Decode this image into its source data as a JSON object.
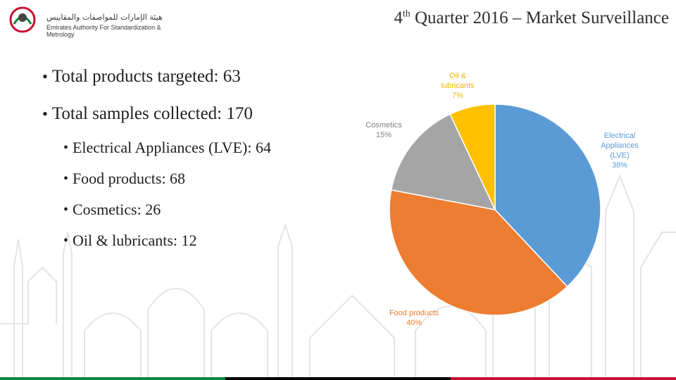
{
  "logo": {
    "arabic_text": "هيئة الإمارات للمواصفات والمقاييس",
    "english_text": "Emirates Authority For Standardization & Metrology"
  },
  "title": {
    "ordinal_number": "4",
    "ordinal_suffix": "th",
    "text": " Quarter 2016 – Market Surveillance"
  },
  "bullets": {
    "main": [
      {
        "text": "Total products targeted: 63"
      },
      {
        "text": "Total samples collected: 170"
      }
    ],
    "sub": [
      {
        "text": "Electrical Appliances (LVE): 64"
      },
      {
        "text": "Food products: 68"
      },
      {
        "text": "Cosmetics: 26"
      },
      {
        "text": "Oil & lubricants: 12"
      }
    ]
  },
  "chart_data": {
    "type": "pie",
    "slices": [
      {
        "label": "Electrical Appliances (LVE)",
        "value": 38,
        "percent_label": "38%",
        "color": "#5b9bd5"
      },
      {
        "label": "Food products",
        "value": 40,
        "percent_label": "40%",
        "color": "#ed7d31"
      },
      {
        "label": "Cosmetics",
        "value": 15,
        "percent_label": "15%",
        "color": "#a5a5a5"
      },
      {
        "label": "Oil & lubricants",
        "value": 7,
        "percent_label": "7%",
        "color": "#ffc000"
      }
    ]
  },
  "colors": {
    "title_text": "#2f2f2f",
    "footer_green": "#00843d",
    "footer_white": "#ffffff",
    "footer_black": "#000000",
    "footer_red": "#c8102e"
  }
}
